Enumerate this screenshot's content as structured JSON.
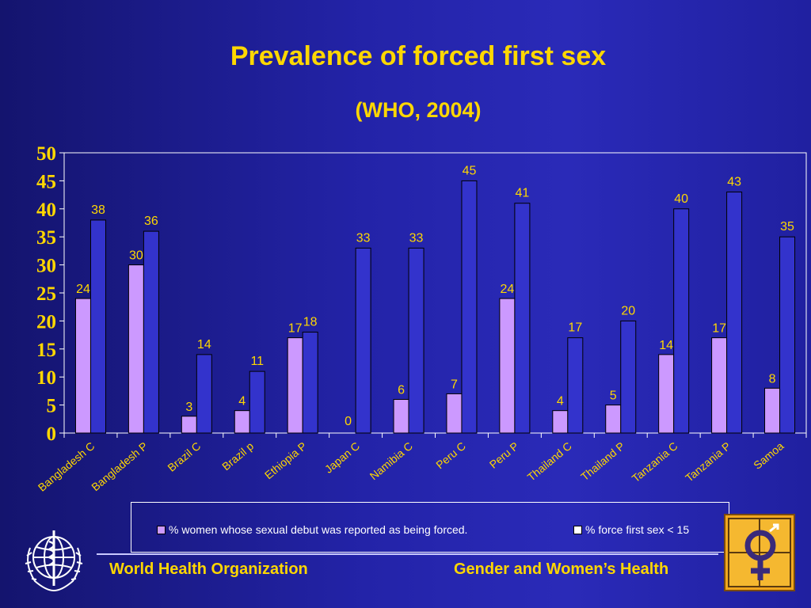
{
  "slide": {
    "title": "Prevalence of forced first sex",
    "subtitle": "(WHO, 2004)"
  },
  "chart_data": {
    "type": "bar",
    "categories": [
      "Bangladesh C",
      "Bangladesh P",
      "Brazil C",
      "Brazil p",
      "Ethiopia P",
      "Japan C",
      "Namibia C",
      "Peru C",
      "Peru P",
      "Thailand C",
      "Thailand P",
      "Tanzania C",
      "Tanzania P",
      "Samoa"
    ],
    "series": [
      {
        "name": "% women whose sexual debut was reported as being forced.",
        "values": [
          24,
          30,
          3,
          4,
          17,
          null,
          6,
          7,
          24,
          4,
          5,
          14,
          17,
          8
        ],
        "labels": [
          "24",
          "30",
          "3",
          "4",
          "17",
          "",
          "6",
          "7",
          "24",
          "4",
          "5",
          "14",
          "17",
          "8"
        ],
        "color": "#cc99ff"
      },
      {
        "name": "% force first sex < 15",
        "values": [
          38,
          36,
          14,
          11,
          18,
          33,
          33,
          45,
          41,
          17,
          20,
          40,
          43,
          35
        ],
        "labels": [
          "38",
          "36",
          "14",
          "11",
          "18",
          "33",
          "33",
          "45",
          "41",
          "17",
          "20",
          "40",
          "43",
          "35"
        ],
        "color": "#3333cc"
      }
    ],
    "extra_labels": [
      {
        "category": "Japan C",
        "text": "0"
      }
    ],
    "ylim": [
      0,
      50
    ],
    "yticks": [
      "0",
      "5",
      "10",
      "15",
      "20",
      "25",
      "30",
      "35",
      "40",
      "45",
      "50"
    ],
    "grid": false,
    "legend_position": "bottom"
  },
  "footer": {
    "left": "World Health Organization",
    "right": "Gender and Women’s Health"
  },
  "icons": {
    "left_logo": "who-emblem-icon",
    "right_logo": "gender-symbol-icon"
  },
  "colors": {
    "title": "#ffd700",
    "background": "#2323a8"
  }
}
